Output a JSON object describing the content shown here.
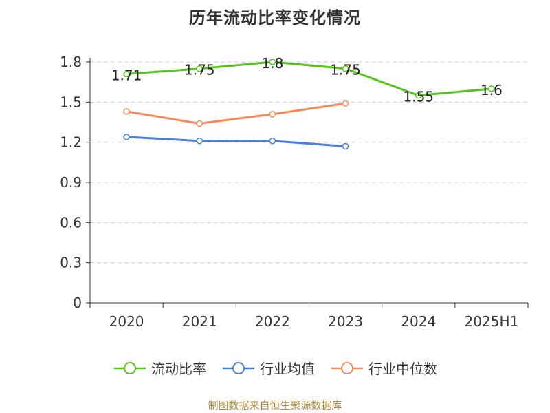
{
  "chart_data": {
    "type": "line",
    "title": "历年流动比率变化情况",
    "categories": [
      "2020",
      "2021",
      "2022",
      "2023",
      "2024",
      "2025H1"
    ],
    "ylim": [
      0,
      1.8
    ],
    "yticks": [
      "0",
      "0.3",
      "0.6",
      "0.9",
      "1.2",
      "1.5",
      "1.8"
    ],
    "grid": true,
    "legend_position": "bottom",
    "series": [
      {
        "name": "流动比率",
        "color": "#52c41a",
        "values": [
          1.71,
          1.75,
          1.8,
          1.75,
          1.55,
          1.6
        ],
        "labels": [
          "1.71",
          "1.75",
          "1.8",
          "1.75",
          "1.55",
          "1.6"
        ]
      },
      {
        "name": "行业均值",
        "color": "#4a7fdc",
        "values": [
          1.24,
          1.21,
          1.21,
          1.17,
          null,
          null
        ]
      },
      {
        "name": "行业中位数",
        "color": "#f5895a",
        "values": [
          1.43,
          1.34,
          1.41,
          1.49,
          null,
          null
        ]
      }
    ]
  },
  "source_note": "制图数据来自恒生聚源数据库"
}
